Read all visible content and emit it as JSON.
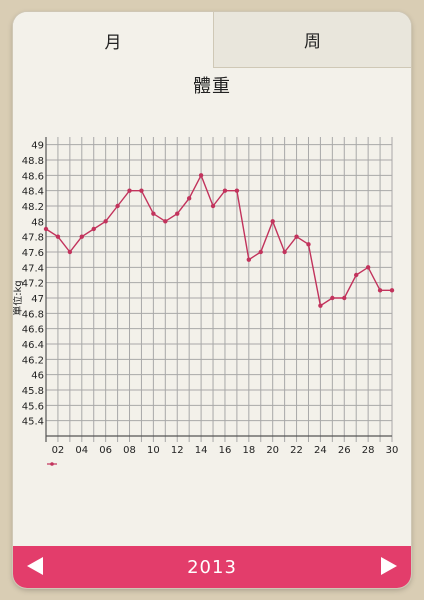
{
  "tabs": {
    "month": "月",
    "week": "周"
  },
  "title": "體重",
  "footer": {
    "year": "2013"
  },
  "colors": {
    "accent": "#e33d6b",
    "line": "#c2335c"
  },
  "icons": {
    "prev": "triangle-left-icon",
    "next": "triangle-right-icon"
  },
  "chart_data": {
    "type": "line",
    "title": "體重",
    "ylabel": "單位:kg",
    "xlabel": "",
    "x": [
      1,
      2,
      3,
      4,
      5,
      6,
      7,
      8,
      9,
      10,
      11,
      12,
      13,
      14,
      15,
      16,
      17,
      18,
      19,
      20,
      21,
      22,
      23,
      24,
      25,
      26,
      27,
      28,
      29,
      30
    ],
    "series": [
      {
        "values": [
          47.9,
          47.8,
          47.6,
          47.8,
          47.9,
          48.0,
          48.2,
          48.4,
          48.4,
          48.1,
          48.0,
          48.1,
          48.3,
          48.6,
          48.2,
          48.4,
          48.4,
          47.5,
          47.6,
          48.0,
          47.6,
          47.8,
          47.7,
          46.9,
          47.0,
          47.0,
          47.3,
          47.4,
          47.1,
          47.1
        ]
      }
    ],
    "ylim": [
      45.2,
      49.0
    ],
    "xlim": [
      1,
      30
    ],
    "yticks": [
      "49",
      "48.8",
      "48.6",
      "48.4",
      "48.2",
      "48",
      "47.8",
      "47.6",
      "47.4",
      "47.2",
      "47",
      "46.8",
      "46.6",
      "46.4",
      "46.2",
      "46",
      "45.8",
      "45.6",
      "45.4"
    ],
    "xticks": [
      "02",
      "04",
      "06",
      "08",
      "10",
      "12",
      "14",
      "16",
      "18",
      "20",
      "22",
      "24",
      "26",
      "28",
      "30"
    ],
    "grid": true,
    "legend": "bottom-left"
  }
}
